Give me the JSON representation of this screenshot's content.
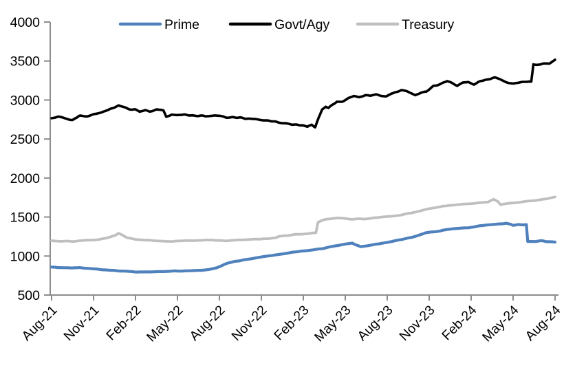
{
  "chart_data": {
    "type": "line",
    "title": "",
    "xlabel": "",
    "ylabel": "",
    "legend_position": "top",
    "grid": false,
    "x_axis": {
      "tick_labels": [
        "Aug-21",
        "Nov-21",
        "Feb-22",
        "May-22",
        "Aug-22",
        "Nov-22",
        "Feb-23",
        "May-23",
        "Aug-23",
        "Nov-23",
        "Feb-24",
        "May-24",
        "Aug-24"
      ],
      "tick_months": [
        0,
        3,
        6,
        9,
        12,
        15,
        18,
        21,
        24,
        27,
        30,
        33,
        36
      ]
    },
    "y_axis": {
      "ticks": [
        4000,
        3500,
        3000,
        2500,
        2000,
        1500,
        1000,
        500
      ],
      "min": 500,
      "max": 4000
    },
    "series": [
      {
        "name": "Prime",
        "color": "#4F81BD",
        "stroke_width": 4.2,
        "noise": 4,
        "points": [
          [
            0,
            858
          ],
          [
            0.7,
            850
          ],
          [
            1.5,
            848
          ],
          [
            2,
            852
          ],
          [
            2.7,
            842
          ],
          [
            3.5,
            828
          ],
          [
            4.2,
            818
          ],
          [
            5,
            808
          ],
          [
            5.7,
            800
          ],
          [
            6.5,
            795
          ],
          [
            7.2,
            797
          ],
          [
            8,
            801
          ],
          [
            8.7,
            806
          ],
          [
            9.4,
            808
          ],
          [
            10,
            812
          ],
          [
            10.7,
            818
          ],
          [
            11.3,
            828
          ],
          [
            11.8,
            850
          ],
          [
            12.2,
            878
          ],
          [
            12.6,
            910
          ],
          [
            13,
            928
          ],
          [
            14,
            958
          ],
          [
            15,
            988
          ],
          [
            16,
            1015
          ],
          [
            17,
            1042
          ],
          [
            17.7,
            1058
          ],
          [
            18.4,
            1072
          ],
          [
            19,
            1086
          ],
          [
            19.4,
            1098
          ],
          [
            20,
            1118
          ],
          [
            20.4,
            1132
          ],
          [
            21,
            1152
          ],
          [
            21.5,
            1168
          ],
          [
            21.8,
            1140
          ],
          [
            22.1,
            1118
          ],
          [
            22.6,
            1135
          ],
          [
            23,
            1145
          ],
          [
            23.4,
            1156
          ],
          [
            24,
            1176
          ],
          [
            24.6,
            1198
          ],
          [
            25.2,
            1220
          ],
          [
            25.8,
            1242
          ],
          [
            26.3,
            1270
          ],
          [
            26.8,
            1298
          ],
          [
            27.3,
            1312
          ],
          [
            27.8,
            1322
          ],
          [
            28.3,
            1342
          ],
          [
            28.8,
            1350
          ],
          [
            29.3,
            1356
          ],
          [
            29.8,
            1362
          ],
          [
            30.2,
            1372
          ],
          [
            30.7,
            1388
          ],
          [
            31.2,
            1398
          ],
          [
            31.7,
            1406
          ],
          [
            32.2,
            1412
          ],
          [
            32.5,
            1420
          ],
          [
            32.8,
            1408
          ],
          [
            33,
            1392
          ],
          [
            33.4,
            1403
          ],
          [
            33.7,
            1400
          ],
          [
            33.95,
            1402
          ],
          [
            34.05,
            1186
          ],
          [
            34.4,
            1188
          ],
          [
            34.8,
            1192
          ],
          [
            35.1,
            1196
          ],
          [
            35.4,
            1186
          ],
          [
            35.8,
            1180
          ],
          [
            36,
            1176
          ]
        ]
      },
      {
        "name": "Govt/Agy",
        "color": "#000000",
        "stroke_width": 3.6,
        "noise": 11,
        "points": [
          [
            0,
            2770
          ],
          [
            0.5,
            2782
          ],
          [
            1,
            2756
          ],
          [
            1.5,
            2746
          ],
          [
            2,
            2796
          ],
          [
            2.5,
            2790
          ],
          [
            3,
            2820
          ],
          [
            3.5,
            2836
          ],
          [
            4,
            2870
          ],
          [
            4.5,
            2910
          ],
          [
            4.8,
            2936
          ],
          [
            5.2,
            2906
          ],
          [
            5.5,
            2882
          ],
          [
            6,
            2876
          ],
          [
            6.3,
            2846
          ],
          [
            6.7,
            2872
          ],
          [
            7,
            2852
          ],
          [
            7.5,
            2876
          ],
          [
            8,
            2866
          ],
          [
            8.2,
            2790
          ],
          [
            8.6,
            2816
          ],
          [
            9,
            2802
          ],
          [
            9.5,
            2812
          ],
          [
            10,
            2802
          ],
          [
            10.5,
            2796
          ],
          [
            11,
            2792
          ],
          [
            11.5,
            2796
          ],
          [
            12,
            2800
          ],
          [
            12.5,
            2780
          ],
          [
            13,
            2782
          ],
          [
            13.5,
            2772
          ],
          [
            14,
            2762
          ],
          [
            14.5,
            2752
          ],
          [
            15,
            2746
          ],
          [
            15.5,
            2732
          ],
          [
            16,
            2722
          ],
          [
            16.5,
            2706
          ],
          [
            17,
            2692
          ],
          [
            17.5,
            2682
          ],
          [
            18,
            2672
          ],
          [
            18.3,
            2652
          ],
          [
            18.6,
            2682
          ],
          [
            18.85,
            2656
          ],
          [
            19.1,
            2780
          ],
          [
            19.35,
            2880
          ],
          [
            19.6,
            2916
          ],
          [
            19.8,
            2896
          ],
          [
            20.1,
            2940
          ],
          [
            20.4,
            2986
          ],
          [
            20.8,
            2976
          ],
          [
            21.2,
            3022
          ],
          [
            21.6,
            3052
          ],
          [
            22,
            3036
          ],
          [
            22.4,
            3062
          ],
          [
            22.8,
            3052
          ],
          [
            23.2,
            3072
          ],
          [
            23.9,
            3046
          ],
          [
            24.3,
            3082
          ],
          [
            24.7,
            3102
          ],
          [
            25,
            3130
          ],
          [
            25.4,
            3112
          ],
          [
            26,
            3056
          ],
          [
            26.4,
            3092
          ],
          [
            26.8,
            3112
          ],
          [
            27.3,
            3182
          ],
          [
            27.8,
            3202
          ],
          [
            28.3,
            3246
          ],
          [
            28.7,
            3212
          ],
          [
            29,
            3182
          ],
          [
            29.4,
            3222
          ],
          [
            29.8,
            3232
          ],
          [
            30.2,
            3202
          ],
          [
            30.7,
            3246
          ],
          [
            31.2,
            3262
          ],
          [
            31.7,
            3286
          ],
          [
            32.1,
            3262
          ],
          [
            32.5,
            3232
          ],
          [
            33,
            3212
          ],
          [
            33.5,
            3226
          ],
          [
            34,
            3230
          ],
          [
            34.3,
            3236
          ],
          [
            34.45,
            3460
          ],
          [
            34.9,
            3452
          ],
          [
            35.2,
            3472
          ],
          [
            35.6,
            3466
          ],
          [
            36,
            3520
          ]
        ]
      },
      {
        "name": "Treasury",
        "color": "#BFBFBF",
        "stroke_width": 3.8,
        "noise": 4.5,
        "points": [
          [
            0,
            1198
          ],
          [
            0.5,
            1190
          ],
          [
            1,
            1192
          ],
          [
            1.5,
            1186
          ],
          [
            2,
            1196
          ],
          [
            2.5,
            1200
          ],
          [
            3,
            1206
          ],
          [
            3.5,
            1216
          ],
          [
            4,
            1236
          ],
          [
            4.5,
            1262
          ],
          [
            4.8,
            1292
          ],
          [
            5.1,
            1262
          ],
          [
            5.4,
            1232
          ],
          [
            6,
            1212
          ],
          [
            6.6,
            1206
          ],
          [
            7.3,
            1198
          ],
          [
            8,
            1192
          ],
          [
            8.6,
            1188
          ],
          [
            9.3,
            1196
          ],
          [
            10,
            1198
          ],
          [
            10.6,
            1200
          ],
          [
            11.2,
            1206
          ],
          [
            11.8,
            1200
          ],
          [
            12.4,
            1198
          ],
          [
            13,
            1202
          ],
          [
            13.6,
            1208
          ],
          [
            14.2,
            1212
          ],
          [
            14.8,
            1218
          ],
          [
            15.4,
            1222
          ],
          [
            16,
            1232
          ],
          [
            16.3,
            1256
          ],
          [
            16.8,
            1262
          ],
          [
            17.4,
            1276
          ],
          [
            18,
            1282
          ],
          [
            18.5,
            1290
          ],
          [
            18.9,
            1298
          ],
          [
            19.05,
            1432
          ],
          [
            19.3,
            1456
          ],
          [
            19.6,
            1472
          ],
          [
            20,
            1478
          ],
          [
            20.5,
            1488
          ],
          [
            21,
            1480
          ],
          [
            21.5,
            1472
          ],
          [
            22,
            1480
          ],
          [
            22.4,
            1472
          ],
          [
            23,
            1488
          ],
          [
            23.5,
            1498
          ],
          [
            24,
            1506
          ],
          [
            24.5,
            1512
          ],
          [
            25,
            1526
          ],
          [
            25.5,
            1546
          ],
          [
            26,
            1562
          ],
          [
            26.5,
            1588
          ],
          [
            27,
            1606
          ],
          [
            27.5,
            1622
          ],
          [
            28,
            1638
          ],
          [
            28.5,
            1650
          ],
          [
            29,
            1658
          ],
          [
            29.5,
            1666
          ],
          [
            30,
            1672
          ],
          [
            30.5,
            1680
          ],
          [
            31.2,
            1692
          ],
          [
            31.6,
            1728
          ],
          [
            31.9,
            1700
          ],
          [
            32.1,
            1658
          ],
          [
            32.5,
            1672
          ],
          [
            33,
            1682
          ],
          [
            33.5,
            1692
          ],
          [
            34,
            1702
          ],
          [
            34.5,
            1712
          ],
          [
            35,
            1722
          ],
          [
            35.5,
            1740
          ],
          [
            36,
            1758
          ]
        ]
      }
    ]
  },
  "style": {
    "axis_color": "#8C8C8C",
    "text_color": "#000000",
    "background": "#FFFFFF"
  }
}
